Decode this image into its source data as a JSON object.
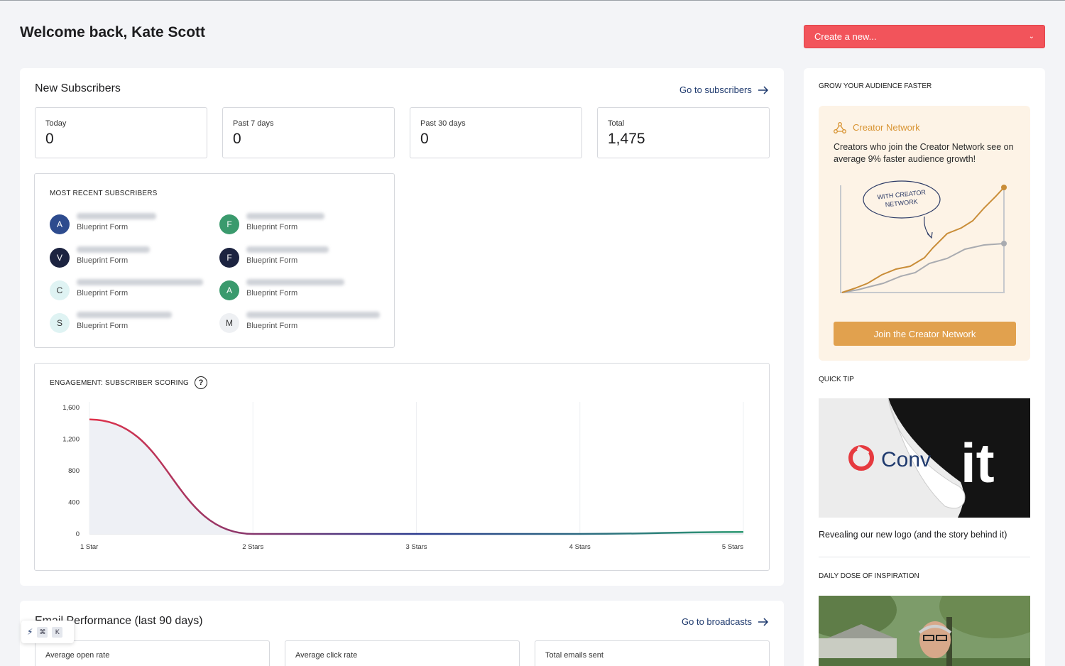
{
  "header": {
    "welcome": "Welcome back, Kate Scott",
    "create_new": "Create a new..."
  },
  "subscribers": {
    "title": "New Subscribers",
    "go_link": "Go to subscribers",
    "stats": [
      {
        "label": "Today",
        "value": "0"
      },
      {
        "label": "Past 7 days",
        "value": "0"
      },
      {
        "label": "Past 30 days",
        "value": "0"
      },
      {
        "label": "Total",
        "value": "1,475"
      }
    ],
    "recent_title": "MOST RECENT SUBSCRIBERS",
    "recent": [
      {
        "initial": "A",
        "source": "Blueprint Form",
        "color": "#2d4b8e",
        "text_color": "#ffffff"
      },
      {
        "initial": "F",
        "source": "Blueprint Form",
        "color": "#3a9a6d",
        "text_color": "#ffffff"
      },
      {
        "initial": "V",
        "source": "Blueprint Form",
        "color": "#1c2340",
        "text_color": "#ffffff"
      },
      {
        "initial": "F",
        "source": "Blueprint Form",
        "color": "#1c2340",
        "text_color": "#ffffff"
      },
      {
        "initial": "C",
        "source": "Blueprint Form",
        "color": "#dff3f3",
        "text_color": "#333333"
      },
      {
        "initial": "A",
        "source": "Blueprint Form",
        "color": "#3a9a6d",
        "text_color": "#ffffff"
      },
      {
        "initial": "S",
        "source": "Blueprint Form",
        "color": "#dff3f3",
        "text_color": "#333333"
      },
      {
        "initial": "M",
        "source": "Blueprint Form",
        "color": "#eef0f3",
        "text_color": "#333333"
      }
    ]
  },
  "engagement": {
    "title": "ENGAGEMENT: SUBSCRIBER SCORING",
    "help_icon": "question-circle-icon"
  },
  "chart_data": {
    "type": "area",
    "categories": [
      "1 Star",
      "2 Stars",
      "3 Stars",
      "4 Stars",
      "5 Stars"
    ],
    "y_ticks": [
      "0",
      "400",
      "800",
      "1,200",
      "1,600"
    ],
    "ylim": [
      0,
      1600
    ],
    "values": [
      1450,
      0,
      0,
      0,
      25
    ],
    "colors": {
      "start": "#e0324a",
      "mid": "#2b3a8f",
      "end": "#2e9a72"
    },
    "grid": true
  },
  "email": {
    "title": "Email Performance (last 90 days)",
    "go_link": "Go to broadcasts",
    "stats": [
      "Average open rate",
      "Average click rate",
      "Total emails sent"
    ]
  },
  "sidebar": {
    "grow_title": "GROW YOUR AUDIENCE FASTER",
    "promo_title": "Creator Network",
    "promo_text": "Creators who join the Creator Network see on average 9% faster audience growth!",
    "promo_bubble": [
      "WITH CREATOR",
      "NETWORK"
    ],
    "join_button": "Join the Creator Network",
    "tip_title": "QUICK TIP",
    "tip_logo_text": "Conv",
    "tip_logo_tail": "it",
    "tip_link": "Revealing our new logo (and the story behind it)",
    "inspiration_title": "DAILY DOSE OF INSPIRATION"
  },
  "kbar": {
    "bolt": "⚡",
    "cmd": "⌘",
    "k": "K"
  }
}
